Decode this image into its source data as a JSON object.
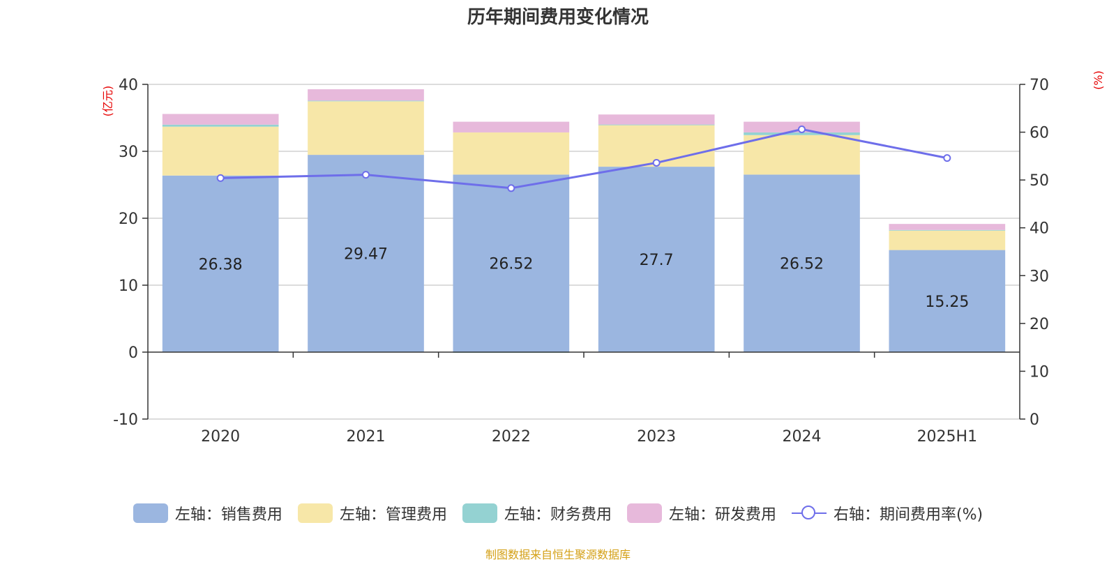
{
  "title": "历年期间费用变化情况",
  "source": "制图数据来自恒生聚源数据库",
  "colors": {
    "sales": "#9bb6e0",
    "admin": "#f7e7a8",
    "finance": "#94d2d2",
    "rnd": "#e7b9db",
    "rate": "#6e6eea"
  },
  "chart_data": {
    "type": "bar",
    "stacked": true,
    "categories": [
      "2020",
      "2021",
      "2022",
      "2023",
      "2024",
      "2025H1"
    ],
    "left_axis": {
      "unit": "(亿元)",
      "ylim": [
        -10,
        40
      ],
      "ticks": [
        "-10",
        "0",
        "10",
        "20",
        "30",
        "40"
      ]
    },
    "right_axis": {
      "unit": "(%)",
      "ylim": [
        0,
        70
      ],
      "ticks": [
        "0",
        "10",
        "20",
        "30",
        "40",
        "50",
        "60",
        "70"
      ]
    },
    "grid": true,
    "legend_position": "bottom",
    "series": [
      {
        "key": "sales",
        "name": "左轴：销售费用",
        "axis": "left",
        "type": "bar",
        "values": [
          26.38,
          29.47,
          26.52,
          27.7,
          26.52,
          15.25
        ],
        "labels": [
          "26.38",
          "29.47",
          "26.52",
          "27.7",
          "26.52",
          "15.25"
        ]
      },
      {
        "key": "admin",
        "name": "左轴：管理费用",
        "axis": "left",
        "type": "bar",
        "values": [
          7.3,
          8.0,
          6.3,
          6.2,
          5.9,
          2.9
        ]
      },
      {
        "key": "finance",
        "name": "左轴：财务费用",
        "axis": "left",
        "type": "bar",
        "values": [
          0.3,
          0.1,
          -0.1,
          0.1,
          0.4,
          0.1
        ]
      },
      {
        "key": "rnd",
        "name": "左轴：研发费用",
        "axis": "left",
        "type": "bar",
        "values": [
          1.6,
          1.7,
          1.6,
          1.5,
          1.6,
          0.9
        ]
      },
      {
        "key": "rate",
        "name": "右轴：期间费用率(%)",
        "axis": "right",
        "type": "line",
        "values": [
          50.4,
          51.1,
          48.3,
          53.6,
          60.6,
          54.6
        ]
      }
    ]
  }
}
